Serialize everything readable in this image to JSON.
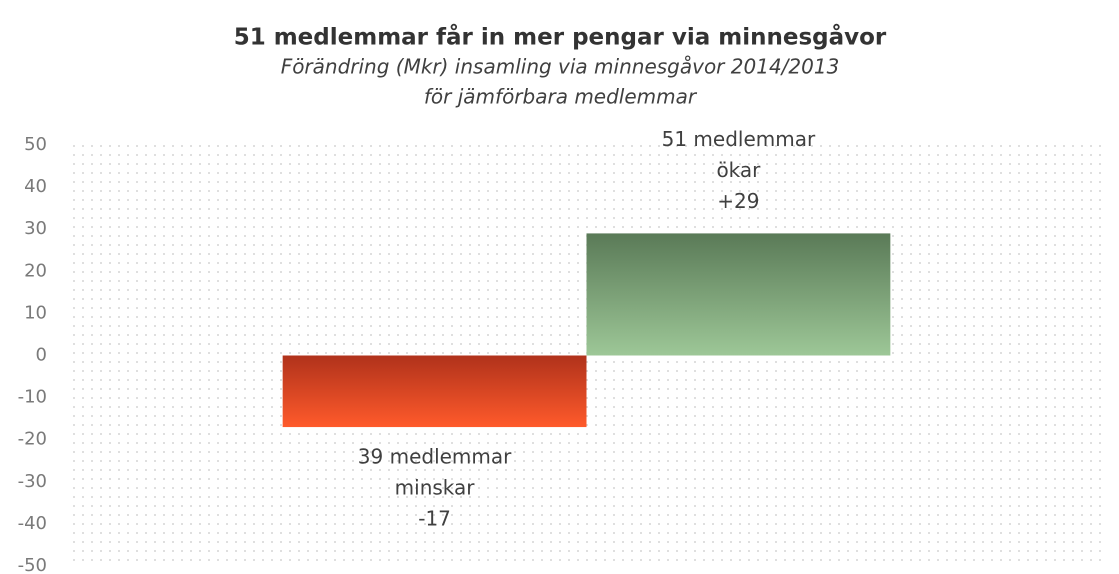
{
  "chart_data": {
    "type": "bar",
    "title": "51 medlemmar får in mer pengar via minnesgåvor",
    "subtitle": [
      "Förändring (Mkr) insamling via minnesgåvor 2014/2013",
      "för jämförbara medlemmar"
    ],
    "categories": [
      null,
      null
    ],
    "values": [
      -17,
      29
    ],
    "value_labels": [
      "-17",
      "+29"
    ],
    "annotations": [
      [
        "39 medlemmar",
        "minskar"
      ],
      [
        "51 medlemmar",
        "ökar"
      ]
    ],
    "colors": [
      [
        "#b0321b",
        "#ff5a2b"
      ],
      [
        "#5a7a57",
        "#9dc797"
      ]
    ],
    "ylim": [
      -50,
      50
    ],
    "yticks": [
      -50,
      -40,
      -30,
      -20,
      -10,
      0,
      10,
      20,
      30,
      40,
      50
    ],
    "grid": false
  }
}
